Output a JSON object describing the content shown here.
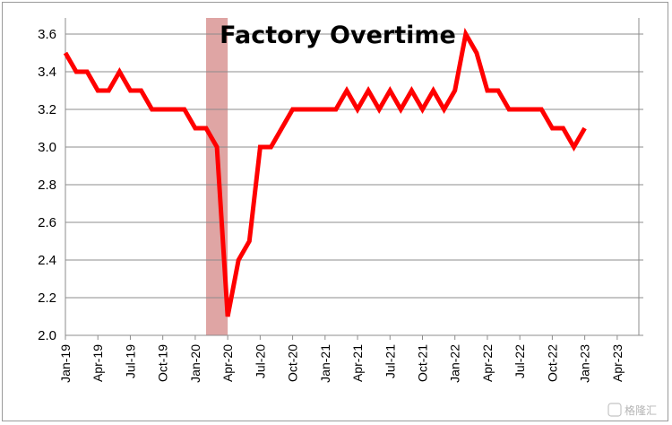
{
  "chart_data": {
    "type": "line",
    "title": "Factory Overtime",
    "xlabel": "",
    "ylabel": "",
    "ylim": [
      2.0,
      3.6
    ],
    "y_ticks": [
      "2.0",
      "2.2",
      "2.4",
      "2.6",
      "2.8",
      "3.0",
      "3.2",
      "3.4",
      "3.6"
    ],
    "x_tick_labels": [
      "Jan-19",
      "Apr-19",
      "Jul-19",
      "Oct-19",
      "Jan-20",
      "Apr-20",
      "Jul-20",
      "Oct-20",
      "Jan-21",
      "Apr-21",
      "Jul-21",
      "Oct-21",
      "Jan-22",
      "Apr-22",
      "Jul-22",
      "Oct-22",
      "Jan-23",
      "Apr-23"
    ],
    "x_range": [
      "2019-01",
      "2023-06"
    ],
    "grid": "horizontal",
    "recession_band": {
      "start": "2020-02",
      "end": "2020-04",
      "color": "#d99594"
    },
    "series": [
      {
        "color": "#ff0000",
        "x": [
          "2019-01",
          "2019-02",
          "2019-03",
          "2019-04",
          "2019-05",
          "2019-06",
          "2019-07",
          "2019-08",
          "2019-09",
          "2019-10",
          "2019-11",
          "2019-12",
          "2020-01",
          "2020-02",
          "2020-03",
          "2020-04",
          "2020-05",
          "2020-06",
          "2020-07",
          "2020-08",
          "2020-09",
          "2020-10",
          "2020-11",
          "2020-12",
          "2021-01",
          "2021-02",
          "2021-03",
          "2021-04",
          "2021-05",
          "2021-06",
          "2021-07",
          "2021-08",
          "2021-09",
          "2021-10",
          "2021-11",
          "2021-12",
          "2022-01",
          "2022-02",
          "2022-03",
          "2022-04",
          "2022-05",
          "2022-06",
          "2022-07",
          "2022-08",
          "2022-09",
          "2022-10",
          "2022-11",
          "2022-12",
          "2023-01"
        ],
        "values": [
          3.5,
          3.4,
          3.4,
          3.3,
          3.3,
          3.4,
          3.3,
          3.3,
          3.2,
          3.2,
          3.2,
          3.2,
          3.1,
          3.1,
          3.0,
          2.1,
          2.4,
          2.5,
          3.0,
          3.0,
          3.1,
          3.2,
          3.2,
          3.2,
          3.2,
          3.2,
          3.3,
          3.2,
          3.3,
          3.2,
          3.3,
          3.2,
          3.3,
          3.2,
          3.3,
          3.2,
          3.3,
          3.6,
          3.5,
          3.3,
          3.3,
          3.2,
          3.2,
          3.2,
          3.2,
          3.1,
          3.1,
          3.0,
          3.1
        ]
      }
    ]
  },
  "watermark": "格隆汇"
}
